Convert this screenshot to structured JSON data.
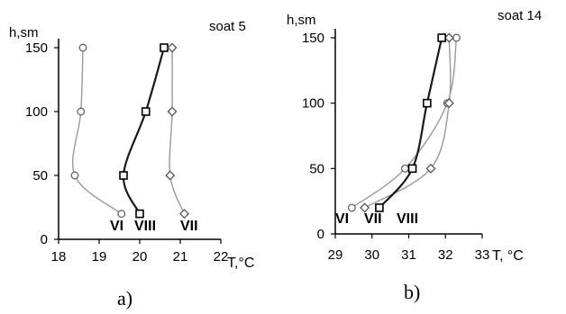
{
  "chart_data": [
    {
      "type": "line",
      "panel_label": "a)",
      "annotation": "soat  5",
      "ylabel": "h,sm",
      "xlabel": "T,°C",
      "xlim": [
        18,
        22
      ],
      "ylim": [
        0,
        150
      ],
      "x_ticks": [
        "18",
        "19",
        "20",
        "21",
        "22"
      ],
      "y_ticks": [
        "0",
        "50",
        "100",
        "150"
      ],
      "series": [
        {
          "name": "VI",
          "points": [
            [
              18.6,
              150
            ],
            [
              18.55,
              100
            ],
            [
              18.4,
              50
            ],
            [
              19.55,
              20
            ]
          ]
        },
        {
          "name": "VIII",
          "points": [
            [
              20.6,
              150
            ],
            [
              20.15,
              100
            ],
            [
              19.6,
              50
            ],
            [
              20.0,
              20
            ]
          ]
        },
        {
          "name": "VII",
          "points": [
            [
              20.8,
              150
            ],
            [
              20.8,
              100
            ],
            [
              20.75,
              50
            ],
            [
              21.1,
              20
            ]
          ]
        }
      ]
    },
    {
      "type": "line",
      "panel_label": "b)",
      "annotation": "soat 14",
      "ylabel": "h,sm",
      "xlabel": "T, °C",
      "xlim": [
        29,
        33
      ],
      "ylim": [
        0,
        150
      ],
      "x_ticks": [
        "29",
        "30",
        "31",
        "32",
        "33"
      ],
      "y_ticks": [
        "0",
        "50",
        "100",
        "150"
      ],
      "series": [
        {
          "name": "VI",
          "points": [
            [
              29.45,
              20
            ],
            [
              30.9,
              50
            ],
            [
              32.05,
              100
            ],
            [
              32.3,
              150
            ]
          ]
        },
        {
          "name": "VII",
          "points": [
            [
              29.8,
              20
            ],
            [
              31.6,
              50
            ],
            [
              32.1,
              100
            ],
            [
              32.1,
              150
            ]
          ]
        },
        {
          "name": "VIII",
          "points": [
            [
              30.2,
              20
            ],
            [
              31.1,
              50
            ],
            [
              31.5,
              100
            ],
            [
              31.9,
              150
            ]
          ]
        }
      ]
    }
  ]
}
